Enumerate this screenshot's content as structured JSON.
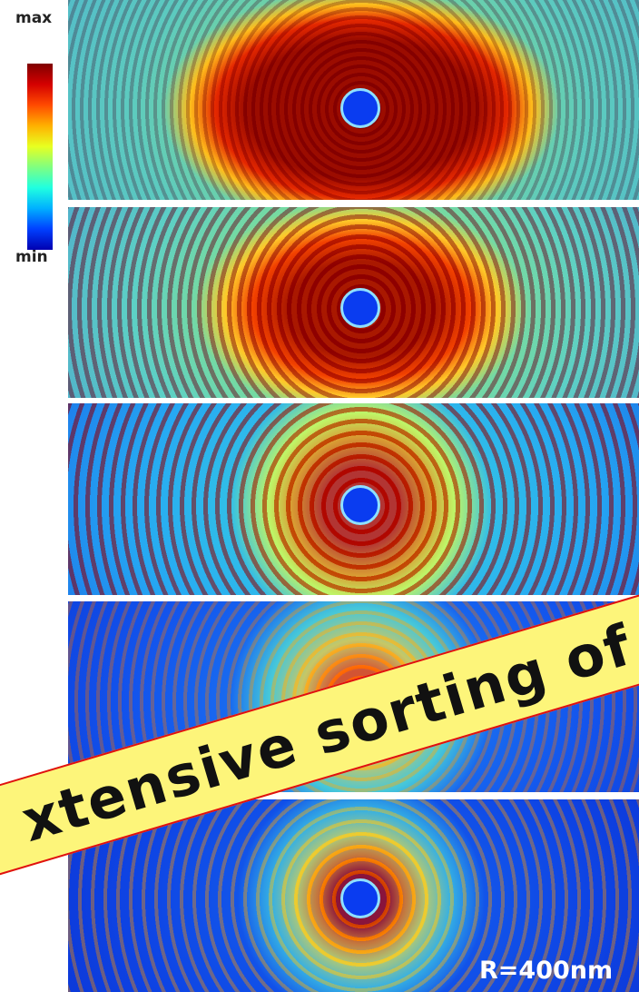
{
  "colorbar": {
    "max": "max",
    "min": "min"
  },
  "banner": "xtensive sorting of",
  "label": "R=400nm"
}
